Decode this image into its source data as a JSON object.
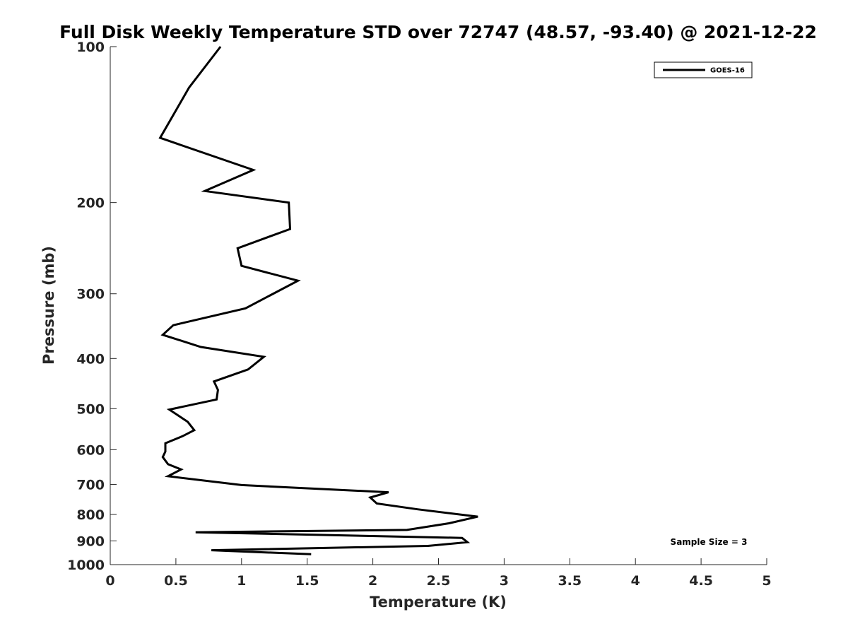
{
  "chart_data": {
    "type": "line",
    "title": "Full Disk Weekly Temperature STD over 72747 (48.57, -93.40) @ 2021-12-22",
    "xlabel": "Temperature (K)",
    "ylabel": "Pressure (mb)",
    "xlim": [
      0,
      5
    ],
    "ylim": [
      100,
      1000
    ],
    "yscale": "log",
    "y_reversed": true,
    "grid": false,
    "legend_position": "top-right",
    "xticks": [
      0,
      0.5,
      1,
      1.5,
      2,
      2.5,
      3,
      3.5,
      4,
      4.5,
      5
    ],
    "xtick_labels": [
      "0",
      "0.5",
      "1",
      "1.5",
      "2",
      "2.5",
      "3",
      "3.5",
      "4",
      "4.5",
      "5"
    ],
    "yticks": [
      100,
      200,
      300,
      400,
      500,
      600,
      700,
      800,
      900,
      1000
    ],
    "ytick_labels": [
      "100",
      "200",
      "300",
      "400",
      "500",
      "600",
      "700",
      "800",
      "900",
      "1000"
    ],
    "series": [
      {
        "name": "GOES-16",
        "color": "#000000",
        "points": [
          [
            0.84,
            100
          ],
          [
            0.6,
            120
          ],
          [
            0.38,
            150
          ],
          [
            1.09,
            173
          ],
          [
            0.72,
            190
          ],
          [
            1.36,
            200
          ],
          [
            1.37,
            225
          ],
          [
            0.97,
            245
          ],
          [
            1.0,
            265
          ],
          [
            1.43,
            283
          ],
          [
            1.03,
            320
          ],
          [
            0.48,
            345
          ],
          [
            0.4,
            360
          ],
          [
            0.69,
            380
          ],
          [
            1.17,
            397
          ],
          [
            1.05,
            420
          ],
          [
            0.79,
            443
          ],
          [
            0.82,
            460
          ],
          [
            0.81,
            480
          ],
          [
            0.45,
            502
          ],
          [
            0.59,
            530
          ],
          [
            0.64,
            550
          ],
          [
            0.55,
            565
          ],
          [
            0.42,
            583
          ],
          [
            0.42,
            605
          ],
          [
            0.4,
            620
          ],
          [
            0.44,
            640
          ],
          [
            0.54,
            655
          ],
          [
            0.44,
            675
          ],
          [
            1.0,
            702
          ],
          [
            2.12,
            725
          ],
          [
            1.98,
            742
          ],
          [
            2.03,
            762
          ],
          [
            2.34,
            782
          ],
          [
            2.8,
            808
          ],
          [
            2.58,
            832
          ],
          [
            2.26,
            857
          ],
          [
            0.65,
            866
          ],
          [
            2.68,
            888
          ],
          [
            2.72,
            905
          ],
          [
            2.42,
            920
          ],
          [
            0.77,
            938
          ],
          [
            1.53,
            955
          ]
        ]
      }
    ],
    "annotation": "Sample Size = 3"
  }
}
